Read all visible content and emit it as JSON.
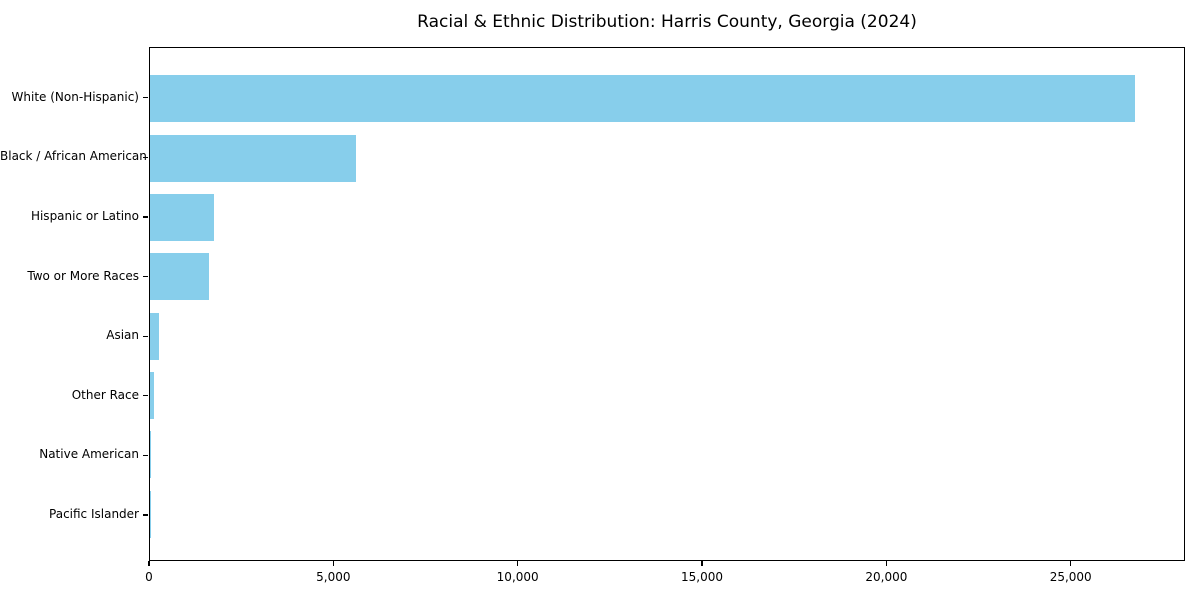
{
  "chart_data": {
    "type": "bar",
    "orientation": "horizontal",
    "title": "Racial & Ethnic Distribution: Harris County, Georgia (2024)",
    "categories": [
      "White (Non-Hispanic)",
      "Black / African American",
      "Hispanic or Latino",
      "Two or More Races",
      "Asian",
      "Other Race",
      "Native American",
      "Pacific Islander"
    ],
    "values": [
      26770,
      5610,
      1750,
      1590,
      250,
      100,
      30,
      10
    ],
    "bar_color": "#87CEEB",
    "xlabel": "",
    "ylabel": "",
    "xlim": [
      0,
      28100
    ],
    "x_ticks": [
      0,
      5000,
      10000,
      15000,
      20000,
      25000
    ],
    "x_tick_labels": [
      "0",
      "5,000",
      "10,000",
      "15,000",
      "20,000",
      "25,000"
    ],
    "grid": false,
    "legend": null,
    "background_color": "#ffffff",
    "text_color": "#000000"
  }
}
